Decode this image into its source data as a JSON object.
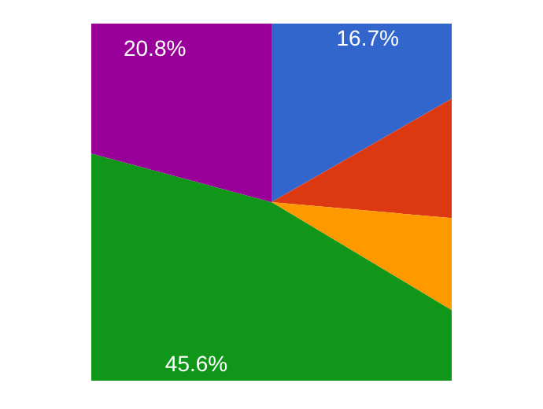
{
  "chart_data": {
    "type": "pie",
    "categories": [
      null,
      null,
      null,
      null,
      null
    ],
    "values": [
      16.7,
      9.7,
      7.2,
      45.6,
      20.8
    ],
    "colors": [
      "#3366cc",
      "#dc3912",
      "#ff9900",
      "#109618",
      "#990099"
    ],
    "value_labels": [
      "16.7%",
      null,
      null,
      "45.6%",
      "20.8%"
    ]
  }
}
